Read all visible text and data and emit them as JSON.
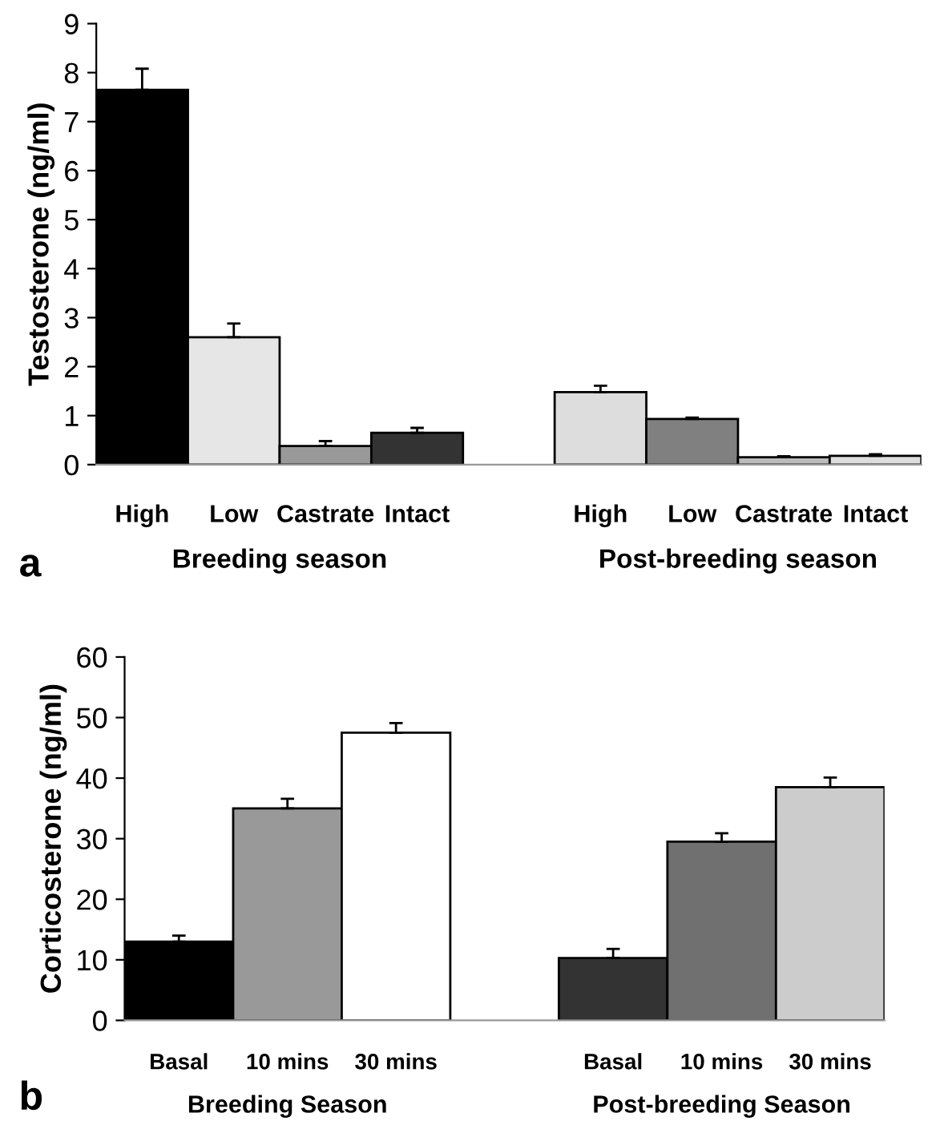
{
  "chart_data": [
    {
      "type": "bar",
      "ylabel": "Testosterone (ng/ml)",
      "categories": [
        "High",
        "Low",
        "Castrate",
        "Intact",
        null,
        "High",
        "Low",
        "Castrate",
        "Intact"
      ],
      "values": [
        7.65,
        2.6,
        0.38,
        0.65,
        null,
        1.48,
        0.93,
        0.15,
        0.18
      ],
      "errors": [
        0.43,
        0.28,
        0.1,
        0.1,
        null,
        0.13,
        0.03,
        0.02,
        0.03
      ],
      "colors": [
        "#000000",
        "#e6e6e6",
        "#999999",
        "#333333",
        "#ffffff",
        "#dddddd",
        "#808080",
        "#bbbbbb",
        "#dddddd"
      ],
      "ylim": [
        0,
        9
      ],
      "yticks": [
        0,
        1,
        2,
        3,
        4,
        5,
        6,
        7,
        8,
        9
      ],
      "grid": false,
      "annotations": [
        "a",
        "Breeding season",
        "Post-breeding season"
      ]
    },
    {
      "type": "bar",
      "ylabel": "Corticosterone (ng/ml)",
      "categories": [
        "Basal",
        "10 mins",
        "30 mins",
        null,
        "Basal",
        "10 mins",
        "30 mins"
      ],
      "values": [
        13,
        35,
        47.5,
        null,
        10.3,
        29.5,
        38.5
      ],
      "errors": [
        1,
        1.6,
        1.6,
        null,
        1.5,
        1.4,
        1.6
      ],
      "colors": [
        "#000000",
        "#999999",
        "#ffffff",
        "#ffffff",
        "#333333",
        "#707070",
        "#cccccc"
      ],
      "ylim": [
        0,
        60
      ],
      "yticks": [
        0,
        10,
        20,
        30,
        40,
        50,
        60
      ],
      "grid": false,
      "annotations": [
        "b",
        "Breeding Season",
        "Post-breeding Season"
      ]
    }
  ]
}
